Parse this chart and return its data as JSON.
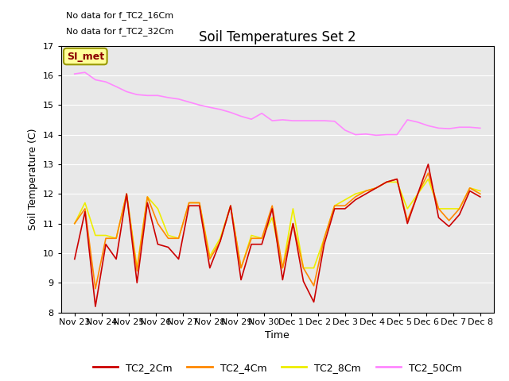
{
  "title": "Soil Temperatures Set 2",
  "xlabel": "Time",
  "ylabel": "Soil Temperature (C)",
  "ylim": [
    8.0,
    17.0
  ],
  "yticks": [
    8.0,
    9.0,
    10.0,
    11.0,
    12.0,
    13.0,
    14.0,
    15.0,
    16.0,
    17.0
  ],
  "no_data_text1": "No data for f_TC2_16Cm",
  "no_data_text2": "No data for f_TC2_32Cm",
  "legend_label_text": "SI_met",
  "x_labels": [
    "Nov 23",
    "Nov 24",
    "Nov 25",
    "Nov 26",
    "Nov 27",
    "Nov 28",
    "Nov 29",
    "Nov 30",
    "Dec 1",
    "Dec 2",
    "Dec 3",
    "Dec 4",
    "Dec 5",
    "Dec 6",
    "Dec 7",
    "Dec 8"
  ],
  "TC2_2Cm_color": "#cc0000",
  "TC2_4Cm_color": "#ff8800",
  "TC2_8Cm_color": "#eeee00",
  "TC2_50Cm_color": "#ff88ff",
  "TC2_2Cm": [
    9.8,
    11.4,
    8.2,
    10.3,
    9.8,
    12.0,
    9.0,
    11.7,
    10.3,
    10.2,
    9.8,
    11.6,
    11.6,
    9.5,
    10.4,
    11.6,
    9.1,
    10.3,
    10.3,
    11.5,
    9.1,
    11.0,
    9.05,
    8.35,
    10.3,
    11.5,
    11.5,
    11.8,
    12.0,
    12.2,
    12.4,
    12.5,
    11.0,
    12.0,
    13.0,
    11.2,
    10.9,
    11.3,
    12.1,
    11.9
  ],
  "TC2_4Cm": [
    11.0,
    11.5,
    8.8,
    10.5,
    10.5,
    12.0,
    9.4,
    11.9,
    11.0,
    10.5,
    10.5,
    11.7,
    11.7,
    9.8,
    10.4,
    11.6,
    9.5,
    10.5,
    10.5,
    11.6,
    9.5,
    11.0,
    9.5,
    8.9,
    10.5,
    11.6,
    11.6,
    11.9,
    12.1,
    12.2,
    12.4,
    12.5,
    11.1,
    12.0,
    12.7,
    11.5,
    11.1,
    11.5,
    12.2,
    12.0
  ],
  "TC2_8Cm": [
    11.0,
    11.7,
    10.6,
    10.6,
    10.5,
    12.0,
    9.5,
    11.9,
    11.5,
    10.6,
    10.5,
    11.7,
    11.7,
    9.9,
    10.5,
    11.6,
    9.5,
    10.6,
    10.5,
    11.2,
    9.5,
    11.5,
    9.5,
    9.5,
    10.5,
    11.6,
    11.8,
    12.0,
    12.1,
    12.2,
    12.4,
    12.4,
    11.5,
    12.0,
    12.5,
    11.5,
    11.5,
    11.5,
    12.2,
    12.1
  ],
  "TC2_50Cm": [
    16.05,
    16.1,
    15.85,
    15.78,
    15.62,
    15.45,
    15.35,
    15.32,
    15.32,
    15.25,
    15.2,
    15.1,
    15.0,
    14.92,
    14.85,
    14.75,
    14.62,
    14.52,
    14.72,
    14.47,
    14.5,
    14.47,
    14.47,
    14.47,
    14.47,
    14.45,
    14.15,
    14.0,
    14.02,
    13.98,
    14.0,
    14.0,
    14.5,
    14.42,
    14.3,
    14.22,
    14.2,
    14.25,
    14.25,
    14.22
  ]
}
